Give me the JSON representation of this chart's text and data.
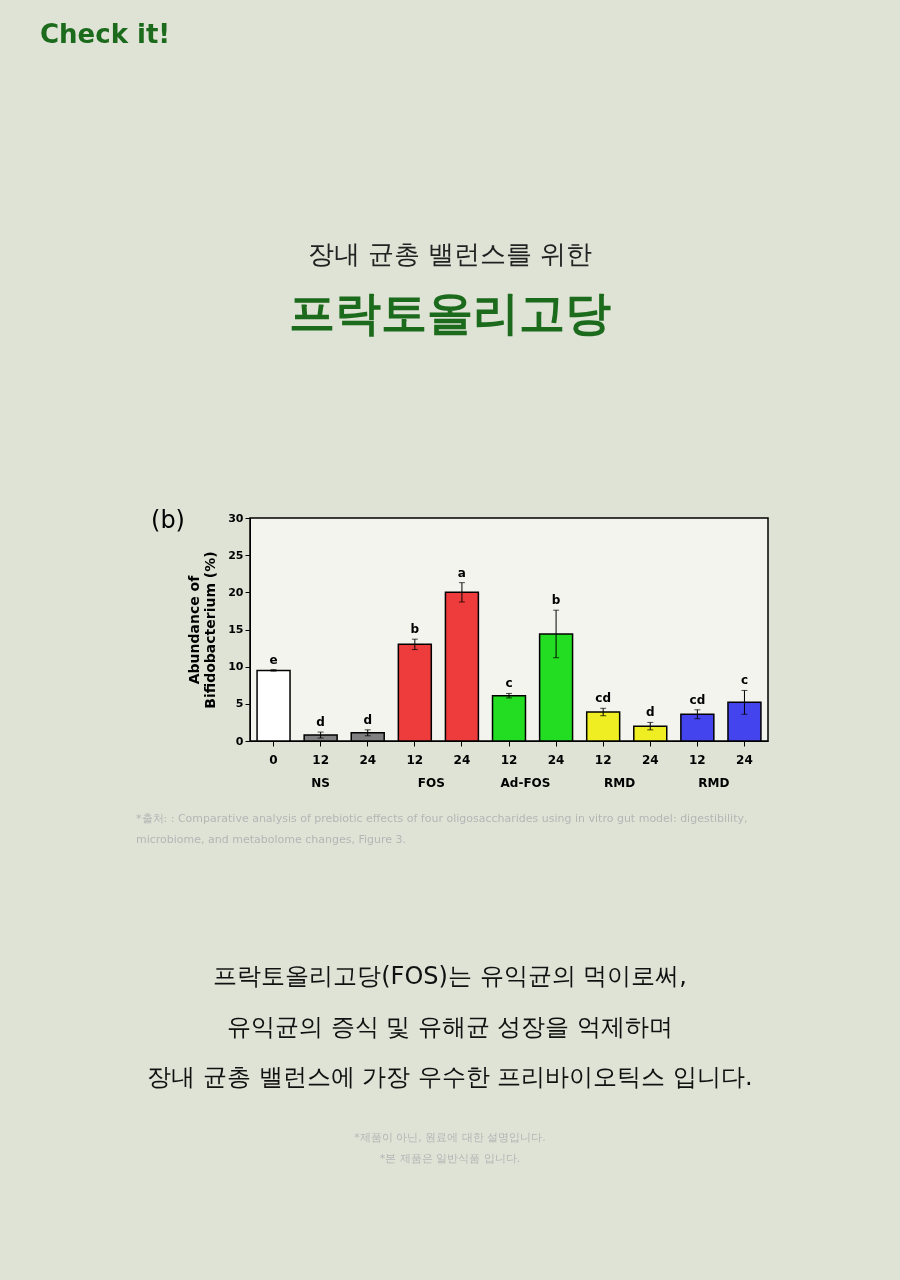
{
  "chart_data": {
    "type": "bar",
    "title": "프락토올리고당",
    "subtitle": "장내 균총 밸런스를  위한",
    "ylabel": "Abundance of\nBifidobacterium (%)",
    "categories": [
      "0",
      "12",
      "24",
      "12",
      "24",
      "12",
      "24",
      "12",
      "24",
      "12",
      "24"
    ],
    "values": [
      9.5,
      0.8,
      1.1,
      13.0,
      20.0,
      6.1,
      14.4,
      3.9,
      2.0,
      3.6,
      5.2
    ],
    "errors": [
      0.1,
      0.4,
      0.4,
      0.7,
      1.3,
      0.3,
      3.2,
      0.5,
      0.5,
      0.6,
      1.6
    ],
    "colors": [
      "#ffffff",
      "#808080",
      "#808080",
      "#ee3b3b",
      "#ee3b3b",
      "#22dd22",
      "#22dd22",
      "#eeee22",
      "#eeee22",
      "#4444ee",
      "#4444ee"
    ],
    "value_labels": [
      "e",
      "d",
      "d",
      "b",
      "a",
      "c",
      "b",
      "cd",
      "d",
      "cd",
      "c"
    ],
    "ylim": [
      0,
      30
    ],
    "yticks": [
      0,
      5,
      10,
      15,
      20,
      25,
      30
    ],
    "grid": false,
    "annotations": [
      "Check it!",
      "(b)",
      "NS",
      "FOS",
      "Ad-FOS",
      "RMD",
      "RMD",
      "*출처: : Comparative analysis of prebiotic effects of four oligosaccharides using in vitro gut model: digestibility,",
      "microbiome, and metabolome changes, Figure 3.",
      "프락토올리고당(FOS)는 유익균의 먹이로써,",
      "유익균의 증식 및 유해균 성장을 억제하며",
      "장내 균총 밸런스에 가장 우수한 프리바이오틱스 입니다.",
      "*제품이 아닌, 원료에 대한 설명입니다.",
      "*본 제품은 일반식품 입니다."
    ]
  }
}
